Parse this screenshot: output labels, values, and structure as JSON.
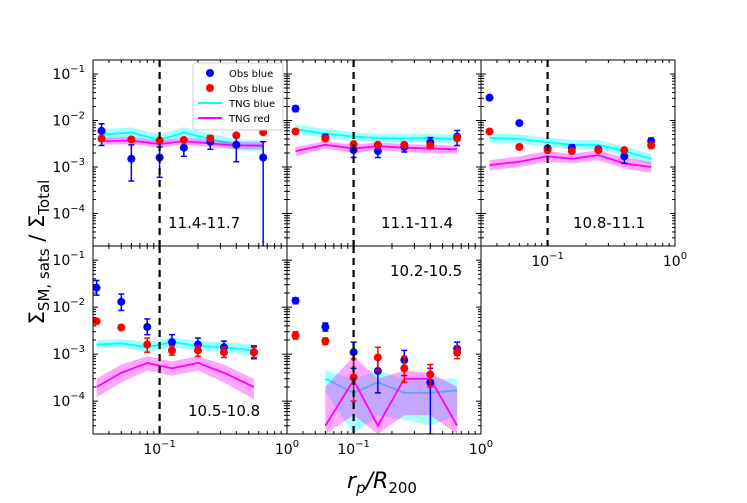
{
  "figure": {
    "xlabel_main": "r",
    "xlabel_sub": "p",
    "xlabel_rest": "/R",
    "xlabel_sub2": "200",
    "ylabel_a": "Σ",
    "ylabel_a_sub": "SM, sats",
    "ylabel_mid": " / Σ",
    "ylabel_b_sub": "Total"
  },
  "legend": [
    {
      "label": "Obs blue",
      "kind": "marker",
      "color": "#0000ff"
    },
    {
      "label": "Obs blue",
      "kind": "marker",
      "color": "#ff0000"
    },
    {
      "label": "TNG blue",
      "kind": "line",
      "color": "#00ffff"
    },
    {
      "label": "TNG red",
      "kind": "line",
      "color": "#ff00ff"
    }
  ],
  "colors": {
    "obs_blue": "#0000ff",
    "obs_red": "#ff0000",
    "tng_blue": "#00ffff",
    "tng_red": "#ff00ff"
  },
  "ticks": {
    "x": [
      {
        "v": 0.1,
        "base": "10",
        "exp": "−1"
      },
      {
        "v": 1.0,
        "base": "10",
        "exp": "0"
      }
    ],
    "y": [
      {
        "v": 0.1,
        "base": "10",
        "exp": "−1"
      },
      {
        "v": 0.01,
        "base": "10",
        "exp": "−2"
      },
      {
        "v": 0.001,
        "base": "10",
        "exp": "−3"
      },
      {
        "v": 0.0001,
        "base": "10",
        "exp": "−4"
      }
    ]
  },
  "chart_data": [
    {
      "type": "scatter",
      "label": "11.4-11.7",
      "xlim": [
        0.03,
        1.0
      ],
      "ylim": [
        2e-05,
        0.2
      ],
      "vline": 0.1,
      "obs_blue": {
        "x": [
          0.035,
          0.06,
          0.1,
          0.155,
          0.25,
          0.4,
          0.65
        ],
        "y": [
          0.006,
          0.0015,
          0.0016,
          0.0026,
          0.0035,
          0.003,
          0.0016
        ],
        "lo": [
          0.0029,
          0.0005,
          0.0006,
          0.0017,
          0.0024,
          0.0013,
          1e-05
        ],
        "hi": [
          0.0085,
          0.003,
          0.0027,
          0.0037,
          0.0047,
          0.0044,
          0.0035
        ]
      },
      "obs_red": {
        "x": [
          0.035,
          0.06,
          0.1,
          0.155,
          0.25,
          0.4,
          0.65
        ],
        "y": [
          0.0041,
          0.0039,
          0.0037,
          0.0038,
          0.0041,
          0.0048,
          0.0056
        ],
        "lo": [
          0.0036,
          0.0035,
          0.0034,
          0.0035,
          0.0037,
          0.0044,
          0.0051
        ],
        "hi": [
          0.0046,
          0.0043,
          0.0041,
          0.0042,
          0.0046,
          0.0053,
          0.0062
        ]
      },
      "tng_blue": {
        "x": [
          0.035,
          0.06,
          0.1,
          0.155,
          0.25,
          0.4,
          0.65
        ],
        "y": [
          0.005,
          0.0055,
          0.0038,
          0.0055,
          0.004,
          0.003,
          0.0028
        ],
        "lo": [
          0.0038,
          0.0043,
          0.003,
          0.0043,
          0.0031,
          0.0023,
          0.0021
        ],
        "hi": [
          0.0065,
          0.0071,
          0.005,
          0.0072,
          0.0052,
          0.004,
          0.0037
        ]
      },
      "tng_red": {
        "x": [
          0.035,
          0.06,
          0.1,
          0.155,
          0.25,
          0.4,
          0.65
        ],
        "y": [
          0.0036,
          0.0037,
          0.0031,
          0.0036,
          0.0032,
          0.0029,
          0.0029
        ],
        "lo": [
          0.003,
          0.0031,
          0.0026,
          0.003,
          0.0027,
          0.0024,
          0.0024
        ],
        "hi": [
          0.0043,
          0.0044,
          0.0037,
          0.0043,
          0.0038,
          0.0035,
          0.0035
        ]
      }
    },
    {
      "type": "scatter",
      "label": "11.1-11.4",
      "xlim": [
        0.03,
        1.0
      ],
      "ylim": [
        2e-05,
        0.2
      ],
      "vline": 0.1,
      "obs_blue": {
        "x": [
          0.035,
          0.06,
          0.1,
          0.155,
          0.25,
          0.4,
          0.65
        ],
        "y": [
          0.018,
          0.0043,
          0.0023,
          0.0022,
          0.0027,
          0.0034,
          0.0045
        ],
        "lo": [
          0.0155,
          0.0037,
          0.0016,
          0.0016,
          0.0021,
          0.0025,
          0.0029
        ],
        "hi": [
          0.0205,
          0.005,
          0.0031,
          0.0028,
          0.0033,
          0.0043,
          0.0061
        ]
      },
      "obs_red": {
        "x": [
          0.035,
          0.06,
          0.1,
          0.155,
          0.25,
          0.4,
          0.65
        ],
        "y": [
          0.0058,
          0.0041,
          0.0031,
          0.003,
          0.003,
          0.0029,
          0.0042
        ],
        "lo": [
          0.0053,
          0.0037,
          0.0028,
          0.0027,
          0.0027,
          0.0026,
          0.0037
        ],
        "hi": [
          0.0063,
          0.0045,
          0.0034,
          0.0033,
          0.0033,
          0.0032,
          0.0047
        ]
      },
      "tng_blue": {
        "x": [
          0.035,
          0.06,
          0.1,
          0.155,
          0.25,
          0.4,
          0.65
        ],
        "y": [
          0.0065,
          0.0052,
          0.0045,
          0.0042,
          0.0041,
          0.0042,
          0.004
        ],
        "lo": [
          0.0052,
          0.0042,
          0.0036,
          0.0034,
          0.0033,
          0.0034,
          0.0032
        ],
        "hi": [
          0.0082,
          0.0066,
          0.0056,
          0.0052,
          0.0051,
          0.0052,
          0.005
        ]
      },
      "tng_red": {
        "x": [
          0.035,
          0.06,
          0.1,
          0.155,
          0.25,
          0.4,
          0.65
        ],
        "y": [
          0.0022,
          0.003,
          0.0025,
          0.0028,
          0.0026,
          0.0025,
          0.0024
        ],
        "lo": [
          0.0017,
          0.0025,
          0.002,
          0.0023,
          0.0021,
          0.002,
          0.0019
        ],
        "hi": [
          0.0027,
          0.0036,
          0.003,
          0.0034,
          0.0031,
          0.003,
          0.0029
        ]
      }
    },
    {
      "type": "scatter",
      "label": "10.8-11.1",
      "xlim": [
        0.03,
        1.0
      ],
      "ylim": [
        2e-05,
        0.2
      ],
      "vline": 0.1,
      "obs_blue": {
        "x": [
          0.035,
          0.06,
          0.1,
          0.155,
          0.25,
          0.4,
          0.65
        ],
        "y": [
          0.031,
          0.0088,
          0.0025,
          0.0026,
          0.0024,
          0.0017,
          0.0036
        ],
        "lo": [
          0.028,
          0.0079,
          0.0022,
          0.0022,
          0.0021,
          0.0012,
          0.003
        ],
        "hi": [
          0.034,
          0.0097,
          0.0028,
          0.003,
          0.0027,
          0.0022,
          0.0042
        ]
      },
      "obs_red": {
        "x": [
          0.035,
          0.06,
          0.1,
          0.155,
          0.25,
          0.4,
          0.65
        ],
        "y": [
          0.0058,
          0.0027,
          0.0023,
          0.0022,
          0.0023,
          0.0023,
          0.0029
        ],
        "lo": [
          0.0053,
          0.0025,
          0.0021,
          0.002,
          0.0021,
          0.0021,
          0.0026
        ],
        "hi": [
          0.0063,
          0.003,
          0.0025,
          0.0024,
          0.0025,
          0.0025,
          0.0032
        ]
      },
      "tng_blue": {
        "x": [
          0.035,
          0.06,
          0.1,
          0.155,
          0.25,
          0.4,
          0.65
        ],
        "y": [
          0.0042,
          0.004,
          0.0034,
          0.003,
          0.003,
          0.0022,
          0.0015
        ],
        "lo": [
          0.0033,
          0.0032,
          0.0027,
          0.0024,
          0.0024,
          0.0017,
          0.0011
        ],
        "hi": [
          0.0053,
          0.005,
          0.0043,
          0.0038,
          0.0038,
          0.0028,
          0.0019
        ]
      },
      "tng_red": {
        "x": [
          0.035,
          0.06,
          0.1,
          0.155,
          0.25,
          0.4,
          0.65
        ],
        "y": [
          0.0011,
          0.0013,
          0.0017,
          0.0015,
          0.0018,
          0.0012,
          0.001
        ],
        "lo": [
          0.00085,
          0.001,
          0.0013,
          0.0012,
          0.0014,
          0.00092,
          0.00075
        ],
        "hi": [
          0.0014,
          0.0017,
          0.0022,
          0.0019,
          0.0023,
          0.0016,
          0.0013
        ]
      }
    },
    {
      "type": "scatter",
      "label": "10.5-10.8",
      "xlim": [
        0.03,
        1.0
      ],
      "ylim": [
        2e-05,
        0.2
      ],
      "vline": 0.1,
      "obs_blue": {
        "x": [
          0.032,
          0.05,
          0.08,
          0.125,
          0.2,
          0.32,
          0.55
        ],
        "y": [
          0.026,
          0.013,
          0.0038,
          0.0018,
          0.0016,
          0.0014,
          0.0011
        ],
        "lo": [
          0.018,
          0.0085,
          0.0026,
          0.0012,
          0.00115,
          0.001,
          0.0008
        ],
        "hi": [
          0.037,
          0.019,
          0.0056,
          0.0026,
          0.0022,
          0.0019,
          0.0015
        ]
      },
      "obs_red": {
        "x": [
          0.032,
          0.05,
          0.08,
          0.125,
          0.2,
          0.32,
          0.55
        ],
        "y": [
          0.005,
          0.0037,
          0.0016,
          0.0012,
          0.0012,
          0.0011,
          0.0011
        ],
        "lo": [
          0.0045,
          0.0033,
          0.0011,
          0.00095,
          0.0009,
          0.00085,
          0.00085
        ],
        "hi": [
          0.0056,
          0.0041,
          0.0022,
          0.0015,
          0.0015,
          0.0014,
          0.0014
        ]
      },
      "tng_blue": {
        "x": [
          0.032,
          0.05,
          0.08,
          0.125,
          0.2,
          0.32,
          0.55
        ],
        "y": [
          0.0016,
          0.0017,
          0.0014,
          0.0018,
          0.0015,
          0.0014,
          0.0012
        ],
        "lo": [
          0.0013,
          0.0014,
          0.0011,
          0.0014,
          0.0012,
          0.0011,
          0.0009
        ],
        "hi": [
          0.002,
          0.0021,
          0.0018,
          0.0023,
          0.0019,
          0.0018,
          0.0016
        ]
      },
      "tng_red": {
        "x": [
          0.032,
          0.05,
          0.08,
          0.125,
          0.2,
          0.32,
          0.55
        ],
        "y": [
          0.0002,
          0.0004,
          0.00065,
          0.0005,
          0.00065,
          0.0004,
          0.0002
        ],
        "lo": [
          0.00012,
          0.00025,
          0.00045,
          0.00035,
          0.00045,
          0.00025,
          0.00011
        ],
        "hi": [
          0.0003,
          0.0006,
          0.0009,
          0.0007,
          0.0009,
          0.0006,
          0.0003
        ]
      }
    },
    {
      "type": "scatter",
      "label": "10.2-10.5",
      "xlim": [
        0.03,
        1.0
      ],
      "ylim": [
        2e-05,
        0.2
      ],
      "vline": 0.1,
      "obs_blue": {
        "x": [
          0.035,
          0.06,
          0.1,
          0.155,
          0.25,
          0.4,
          0.65
        ],
        "y": [
          0.0138,
          0.0038,
          0.0011,
          0.00044,
          0.00075,
          0.00025,
          0.0013
        ],
        "lo": [
          0.0118,
          0.0031,
          0.0005,
          0.00015,
          0.00035,
          2e-05,
          0.00095
        ],
        "hi": [
          0.0158,
          0.0046,
          0.0018,
          0.00085,
          0.0012,
          0.0005,
          0.0018
        ]
      },
      "obs_red": {
        "x": [
          0.035,
          0.06,
          0.1,
          0.155,
          0.25,
          0.4,
          0.65
        ],
        "y": [
          0.0025,
          0.0019,
          0.00032,
          0.00085,
          0.0005,
          0.00037,
          0.0011
        ],
        "lo": [
          0.0021,
          0.0016,
          0.0001,
          0.00045,
          0.00025,
          0.0002,
          0.0008
        ],
        "hi": [
          0.003,
          0.0022,
          0.0008,
          0.0014,
          0.0009,
          0.0006,
          0.0015
        ]
      },
      "tng_blue": {
        "x": [
          0.06,
          0.1,
          0.155,
          0.25,
          0.4,
          0.65
        ],
        "y": [
          0.0003,
          0.00015,
          0.00025,
          0.00015,
          0.00015,
          0.00017
        ],
        "lo": [
          0.00016,
          2e-05,
          5e-05,
          4e-05,
          3e-05,
          5e-05
        ],
        "hi": [
          0.00045,
          0.0003,
          0.00045,
          0.0003,
          0.0003,
          0.0003
        ]
      },
      "tng_red": {
        "x": [
          0.06,
          0.1,
          0.155,
          0.25,
          0.4,
          0.65
        ],
        "y": [
          3e-05,
          0.00028,
          3e-05,
          0.0003,
          0.0003,
          3e-05
        ],
        "lo": [
          2e-05,
          5e-05,
          2e-05,
          5e-05,
          5e-05,
          2e-05
        ],
        "hi": [
          0.0002,
          0.0009,
          0.0003,
          0.00045,
          0.0004,
          0.0002
        ]
      }
    }
  ]
}
